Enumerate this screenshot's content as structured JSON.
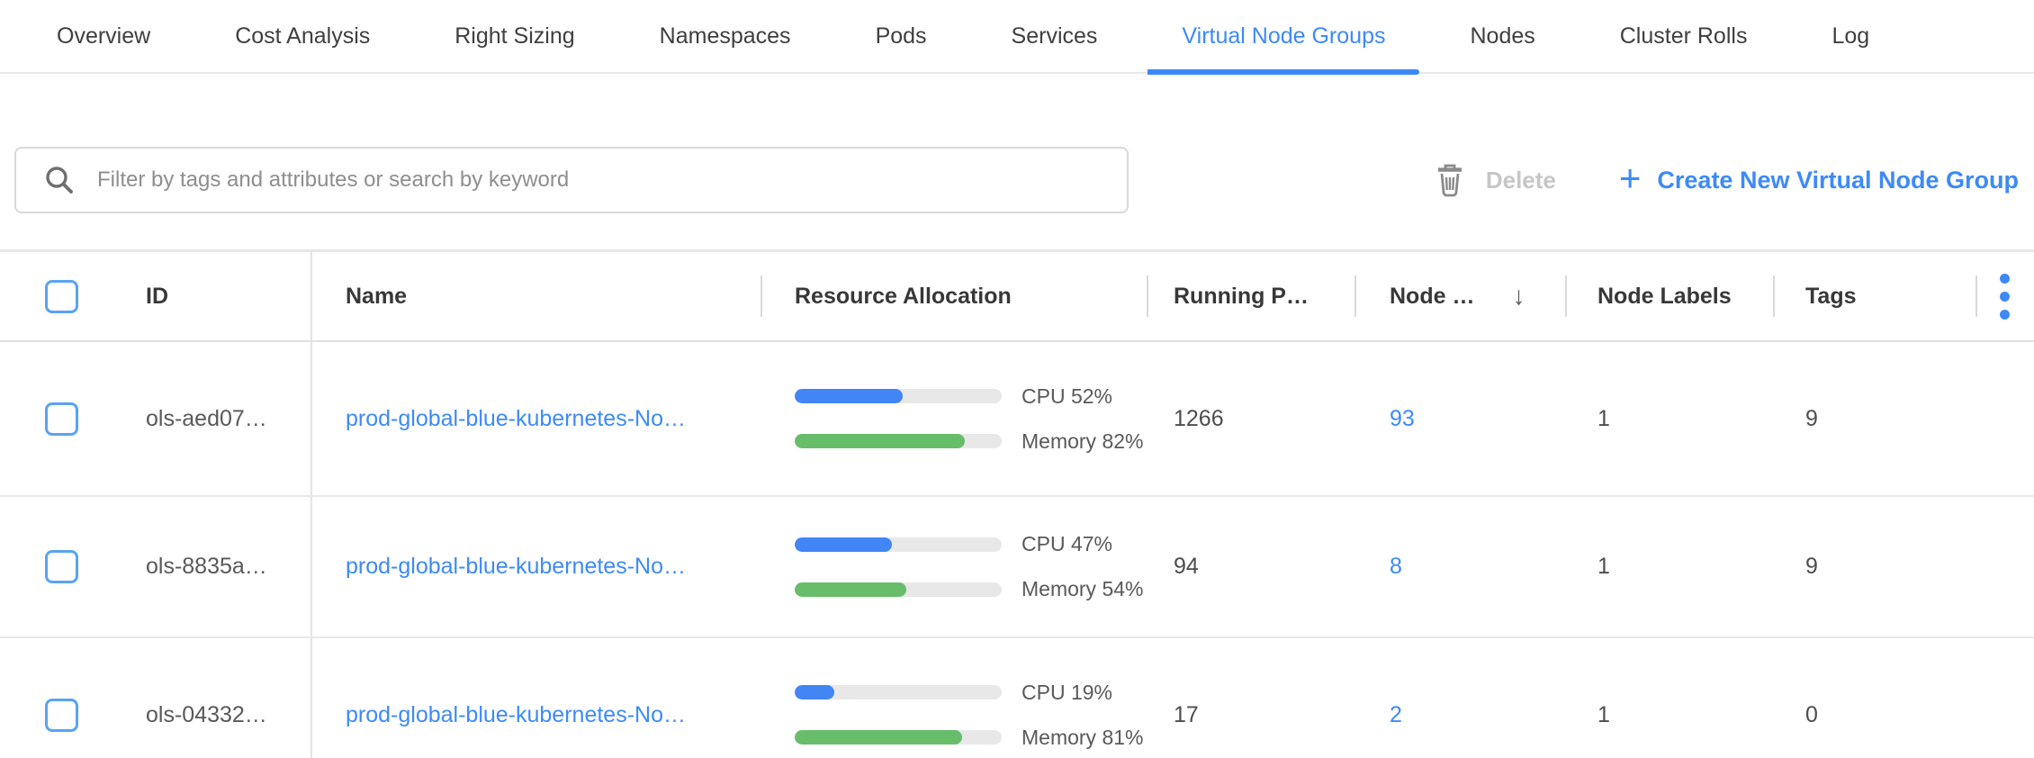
{
  "tabs": [
    {
      "label": "Overview",
      "active": false
    },
    {
      "label": "Cost Analysis",
      "active": false
    },
    {
      "label": "Right Sizing",
      "active": false
    },
    {
      "label": "Namespaces",
      "active": false
    },
    {
      "label": "Pods",
      "active": false
    },
    {
      "label": "Services",
      "active": false
    },
    {
      "label": "Virtual Node Groups",
      "active": true
    },
    {
      "label": "Nodes",
      "active": false
    },
    {
      "label": "Cluster Rolls",
      "active": false
    },
    {
      "label": "Log",
      "active": false
    }
  ],
  "toolbar": {
    "search_placeholder": "Filter by tags and attributes or search by keyword",
    "delete_label": "Delete",
    "create_label": "Create New Virtual Node Group",
    "plus_glyph": "+"
  },
  "table": {
    "columns": {
      "id": "ID",
      "name": "Name",
      "resource_allocation": "Resource Allocation",
      "running_pods": "Running P…",
      "nodes": "Node …",
      "node_labels": "Node Labels",
      "tags": "Tags"
    },
    "sort": {
      "column": "nodes",
      "direction": "desc",
      "glyph": "↓"
    },
    "rows": [
      {
        "id": "ols-aed07…",
        "name": "prod-global-blue-kubernetes-No…",
        "cpu_pct": 52,
        "cpu_label": "CPU 52%",
        "mem_pct": 82,
        "mem_label": "Memory 82%",
        "running_pods": "1266",
        "nodes": "93",
        "node_labels": "1",
        "tags": "9"
      },
      {
        "id": "ols-8835a…",
        "name": "prod-global-blue-kubernetes-No…",
        "cpu_pct": 47,
        "cpu_label": "CPU 47%",
        "mem_pct": 54,
        "mem_label": "Memory 54%",
        "running_pods": "94",
        "nodes": "8",
        "node_labels": "1",
        "tags": "9"
      },
      {
        "id": "ols-04332…",
        "name": "prod-global-blue-kubernetes-No…",
        "cpu_pct": 19,
        "cpu_label": "CPU 19%",
        "mem_pct": 81,
        "mem_label": "Memory 81%",
        "running_pods": "17",
        "nodes": "2",
        "node_labels": "1",
        "tags": "0"
      }
    ]
  },
  "colors": {
    "accent_blue": "#3d8af7",
    "bar_blue": "#4285f4",
    "bar_green": "#67bd6a",
    "bar_track": "#e8e8e8",
    "disabled_text": "#c6c6c6",
    "divider": "#e0e0e0"
  }
}
